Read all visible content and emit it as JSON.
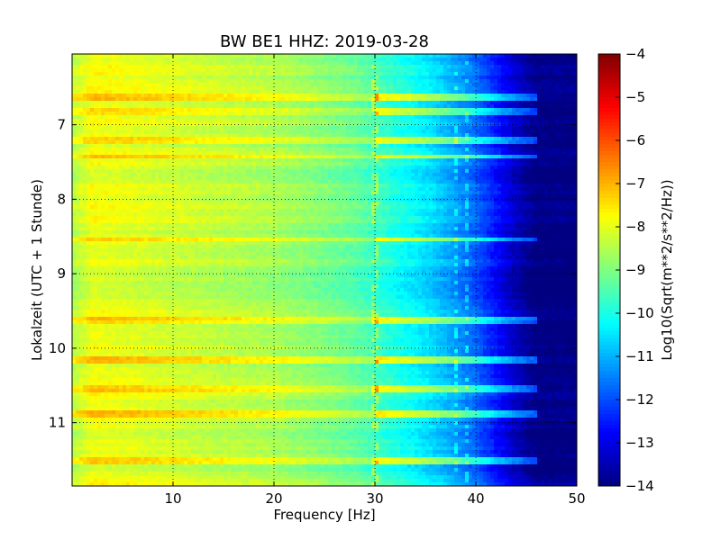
{
  "chart_data": {
    "type": "heatmap",
    "title": "BW BE1 HHZ: 2019-03-28",
    "xlabel": "Frequency [Hz]",
    "ylabel": "Lokalzeit (UTC + 1 Stunde)",
    "colorbar_label": "Log10(Sqrt(m**2/s**2/Hz))",
    "colormap": "jet",
    "xlim": [
      0,
      50
    ],
    "ylim": [
      11.85,
      6.05
    ],
    "y_inverted": true,
    "grid": true,
    "x_ticks": [
      10,
      20,
      30,
      40,
      50
    ],
    "x_tick_labels": [
      "10",
      "20",
      "30",
      "40",
      "50"
    ],
    "y_ticks": [
      7,
      8,
      9,
      10,
      11
    ],
    "y_tick_labels": [
      "7",
      "8",
      "9",
      "10",
      "11"
    ],
    "color_range": [
      -14,
      -4
    ],
    "colorbar_ticks": [
      -4,
      -5,
      -6,
      -7,
      -8,
      -9,
      -10,
      -11,
      -12,
      -13,
      -14
    ],
    "colorbar_tick_labels": [
      "−4",
      "−5",
      "−6",
      "−7",
      "−8",
      "−9",
      "−10",
      "−11",
      "−12",
      "−13",
      "−14"
    ],
    "frequency_profile": {
      "frequency_hz": [
        0,
        2,
        5,
        10,
        15,
        20,
        25,
        28,
        30,
        32,
        34,
        36,
        38,
        40,
        42,
        44,
        45,
        46,
        50
      ],
      "level": [
        -8.5,
        -7.9,
        -8.0,
        -8.2,
        -8.4,
        -8.6,
        -9.0,
        -9.3,
        -9.6,
        -10.0,
        -10.3,
        -10.7,
        -11.2,
        -11.8,
        -12.6,
        -13.4,
        -13.7,
        -14.0,
        -14.0
      ]
    },
    "bright_horizontal_bands_local_time": [
      6.63,
      6.82,
      7.22,
      7.42,
      8.55,
      9.62,
      10.15,
      10.55,
      10.88,
      11.52
    ],
    "bright_vertical_lines_hz": [
      30,
      38,
      39
    ]
  }
}
